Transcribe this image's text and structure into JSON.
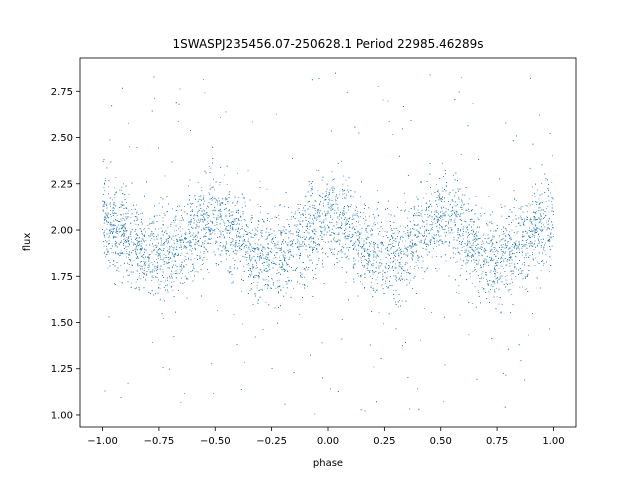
{
  "chart_data": {
    "type": "scatter",
    "title": "1SWASPJ235456.07-250628.1 Period 22985.46289s",
    "xlabel": "phase",
    "ylabel": "flux",
    "xlim": [
      -1.1,
      1.1
    ],
    "ylim": [
      0.935,
      2.93
    ],
    "xticks": [
      -1.0,
      -0.75,
      -0.5,
      -0.25,
      0.0,
      0.25,
      0.5,
      0.75,
      1.0
    ],
    "xtick_labels": [
      "−1.00",
      "−0.75",
      "−0.50",
      "−0.25",
      "0.00",
      "0.25",
      "0.50",
      "0.75",
      "1.00"
    ],
    "yticks": [
      1.0,
      1.25,
      1.5,
      1.75,
      2.0,
      2.25,
      2.5,
      2.75
    ],
    "ytick_labels": [
      "1.00",
      "1.25",
      "1.50",
      "1.75",
      "2.00",
      "2.25",
      "2.50",
      "2.75"
    ],
    "point_color": "#1f77b4",
    "grid": false,
    "legend": "none",
    "phase_profile": {
      "phase": [
        -1.0,
        -0.9,
        -0.8,
        -0.7,
        -0.6,
        -0.5,
        -0.4,
        -0.3,
        -0.2,
        -0.1,
        0.0,
        0.1,
        0.2,
        0.3,
        0.4,
        0.5,
        0.6,
        0.7,
        0.8,
        0.9,
        1.0
      ],
      "flux": [
        2.05,
        1.98,
        1.88,
        1.87,
        1.98,
        2.06,
        1.98,
        1.83,
        1.86,
        1.98,
        2.07,
        1.99,
        1.87,
        1.87,
        1.98,
        2.06,
        1.98,
        1.83,
        1.86,
        1.98,
        2.07
      ]
    },
    "scatter_sd": 0.12,
    "flux_range": [
      1.0,
      2.87
    ]
  }
}
